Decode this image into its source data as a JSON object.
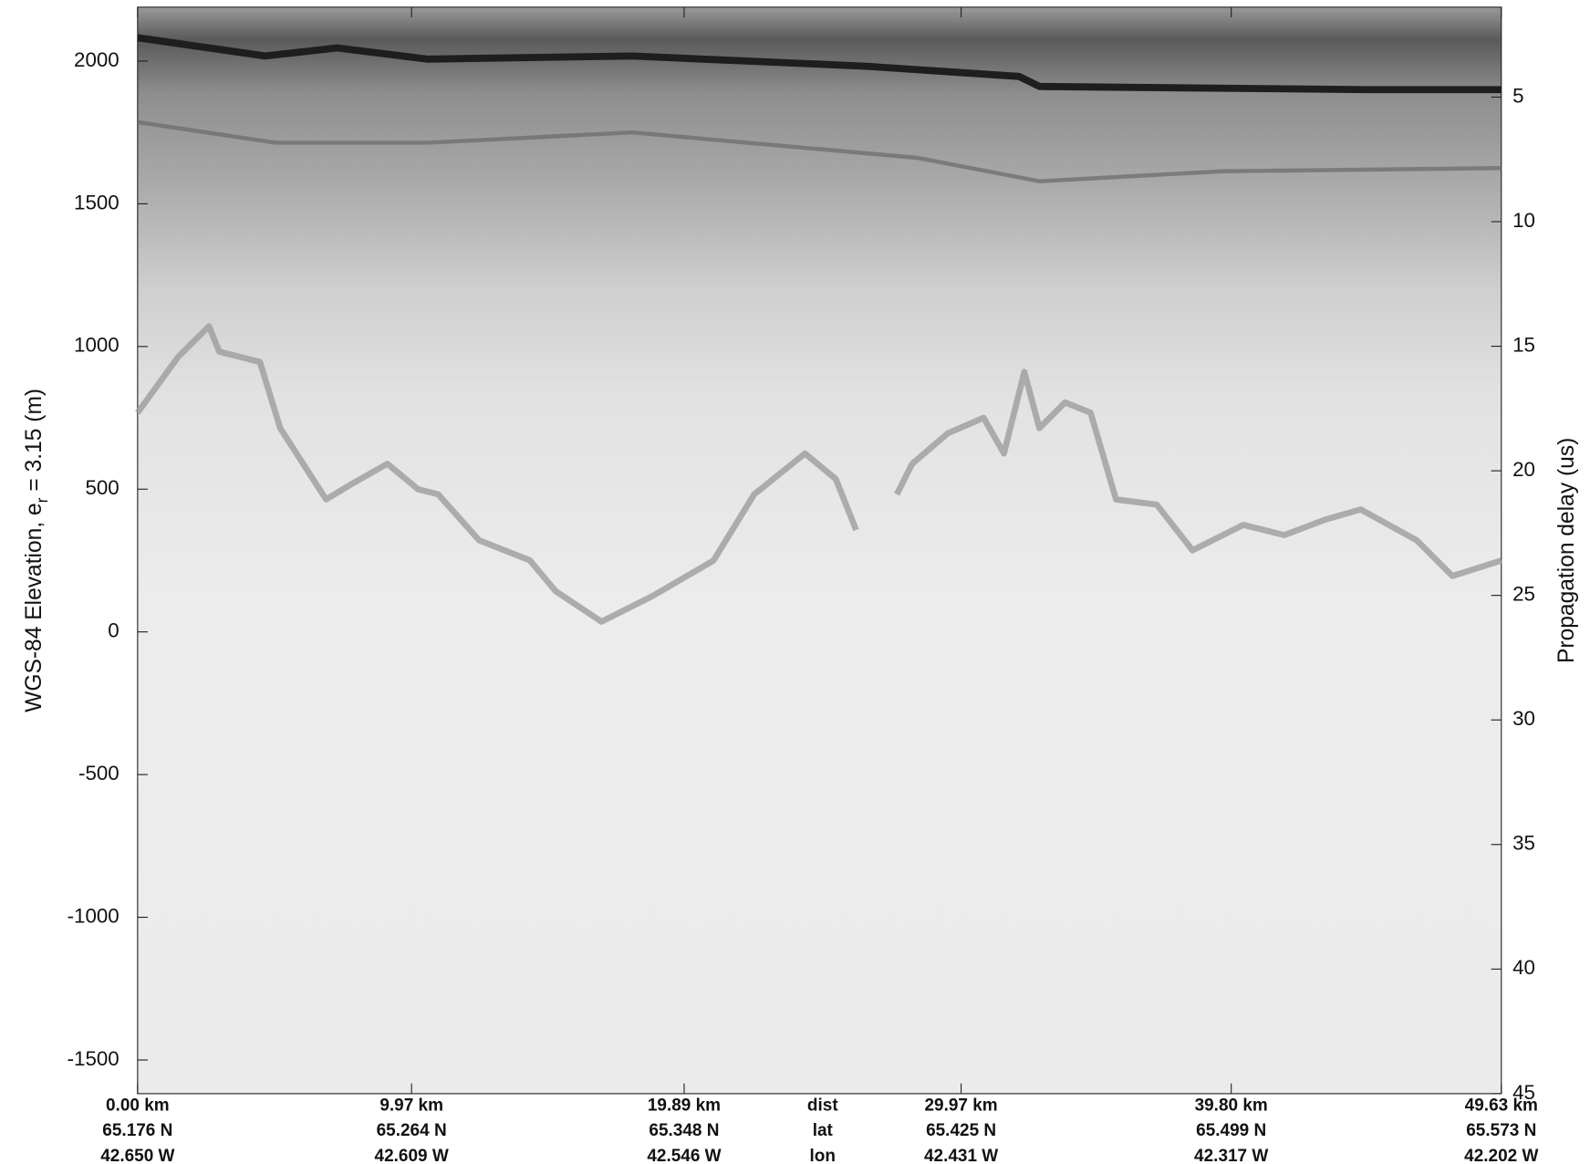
{
  "chart_data": {
    "type": "echogram",
    "ylabel": {
      "prefix": "WGS-84 Elevation, e",
      "subscript": "r",
      "suffix": " = 3.15 (m)"
    },
    "y2label": "Propagation delay (us)",
    "ylim": [
      -1618,
      2189
    ],
    "yticks": [
      -1500,
      -1000,
      -500,
      0,
      500,
      1000,
      1500,
      2000
    ],
    "y2lim": [
      45,
      1.39
    ],
    "y2ticks": [
      5,
      10,
      15,
      20,
      25,
      30,
      35,
      40,
      45
    ],
    "xlim": [
      0,
      49.63
    ],
    "xticks": [
      {
        "value": 0,
        "label": "0.00 km"
      },
      {
        "value": 9.97,
        "label": "9.97 km"
      },
      {
        "value": 19.89,
        "label": "19.89 km"
      },
      {
        "value": 29.97,
        "label": "29.97 km"
      },
      {
        "value": 39.8,
        "label": "39.80 km"
      },
      {
        "value": 49.63,
        "label": "49.63 km"
      }
    ],
    "lat_labels": [
      "65.176 N",
      "65.264 N",
      "65.348 N",
      "65.425 N",
      "65.499 N",
      "65.573 N"
    ],
    "lon_labels": [
      "42.650 W",
      "42.609 W",
      "42.546 W",
      "42.431 W",
      "42.317 W",
      "42.202 W"
    ],
    "row_labels": [
      "dist",
      "lat",
      "lon"
    ],
    "surface": {
      "color": "#1e1e1e",
      "x": [
        0,
        4.64,
        7.27,
        10.57,
        17.99,
        26.52,
        32.08,
        32.82,
        44.7,
        49.63
      ],
      "values": [
        2082,
        2018,
        2046,
        2007,
        2018,
        1982,
        1946,
        1911,
        1900,
        1900
      ]
    },
    "layer": {
      "color": "#6a6a6a",
      "x": [
        0,
        5.01,
        10.57,
        17.99,
        28.37,
        32.82,
        39.5,
        49.63
      ],
      "values": [
        1786,
        1714,
        1714,
        1750,
        1661,
        1579,
        1614,
        1625
      ]
    },
    "bed": {
      "color": "#9c9c9c",
      "x": [
        0,
        1.48,
        2.6,
        2.97,
        4.45,
        5.19,
        6.86,
        7.79,
        9.09,
        10.2,
        10.94,
        12.43,
        14.28,
        15.21,
        16.88,
        18.73,
        20.96,
        22.44,
        24.29,
        25.41,
        26.15,
        26.9,
        27.63,
        28.19,
        29.49,
        30.79,
        31.53,
        32.27,
        32.82,
        33.75,
        34.68,
        35.61,
        37.09,
        38.39,
        40.24,
        41.73,
        43.21,
        44.51,
        46.55,
        47.85,
        49.63
      ],
      "values": [
        768,
        964,
        1071,
        982,
        946,
        714,
        464,
        518,
        589,
        500,
        482,
        321,
        250,
        143,
        36,
        125,
        250,
        482,
        625,
        536,
        357,
        null,
        482,
        589,
        696,
        750,
        625,
        911,
        714,
        804,
        768,
        464,
        446,
        286,
        375,
        339,
        393,
        429,
        321,
        196,
        250
      ]
    }
  }
}
